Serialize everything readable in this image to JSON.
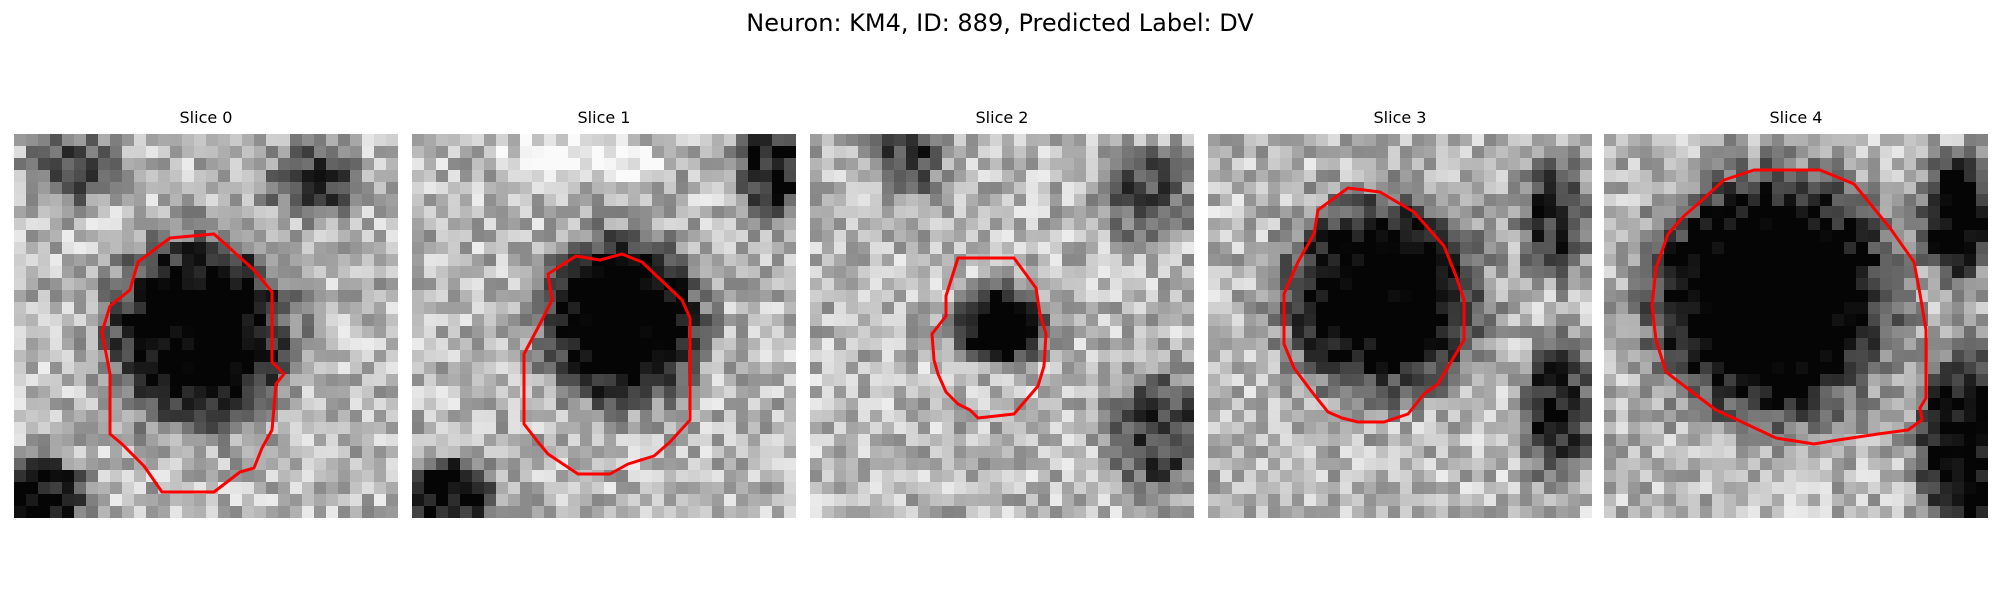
{
  "figure": {
    "title": "Neuron: KM4, ID: 889, Predicted Label: DV"
  },
  "panels": [
    {
      "title": "Slice 0",
      "seed": 11,
      "outline_color": "#ff0000"
    },
    {
      "title": "Slice 1",
      "seed": 23,
      "outline_color": "#ff0000"
    },
    {
      "title": "Slice 2",
      "seed": 37,
      "outline_color": "#ff0000"
    },
    {
      "title": "Slice 3",
      "seed": 53,
      "outline_color": "#ff0000"
    },
    {
      "title": "Slice 4",
      "seed": 71,
      "outline_color": "#ff0000"
    }
  ]
}
